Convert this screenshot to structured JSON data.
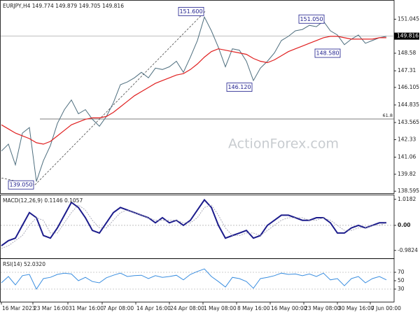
{
  "chart_data": [
    {
      "type": "line",
      "title": "EURJPY,H4 149.774 149.879 149.705 149.816",
      "watermark": "ActionForex.com",
      "xlim": [
        0,
        56
      ],
      "ylim": [
        138.45,
        152.33
      ],
      "yticks": [
        151.045,
        148.58,
        147.31,
        146.105,
        144.835,
        143.565,
        142.33,
        141.06,
        139.82,
        138.595
      ],
      "current_price": {
        "value": 149.816,
        "label": "149.816"
      },
      "series": [
        {
          "name": "EURJPY",
          "color": "#4e6e7e",
          "values": [
            141.5,
            142.0,
            140.5,
            142.8,
            143.2,
            139.3,
            140.8,
            141.9,
            143.5,
            144.5,
            145.2,
            144.2,
            144.5,
            143.8,
            143.3,
            144.0,
            145.0,
            146.3,
            146.5,
            146.8,
            147.2,
            146.8,
            147.5,
            147.4,
            147.6,
            148.0,
            147.2,
            148.3,
            149.5,
            151.2,
            150.2,
            149.0,
            147.6,
            148.9,
            148.8,
            148.0,
            146.6,
            147.5,
            148.0,
            148.6,
            149.5,
            149.8,
            150.2,
            150.3,
            150.6,
            150.5,
            150.9,
            150.2,
            149.9,
            149.2,
            149.6,
            149.9,
            149.3,
            149.5,
            149.7,
            149.8
          ]
        },
        {
          "name": "MA",
          "color": "#e02020",
          "values": [
            143.4,
            143.1,
            142.8,
            142.6,
            142.4,
            142.1,
            142.0,
            142.2,
            142.6,
            143.0,
            143.4,
            143.6,
            143.8,
            143.9,
            143.9,
            144.0,
            144.3,
            144.7,
            145.1,
            145.5,
            145.8,
            146.1,
            146.4,
            146.6,
            146.8,
            147.0,
            147.1,
            147.4,
            147.8,
            148.3,
            148.7,
            148.9,
            148.8,
            148.7,
            148.6,
            148.5,
            148.2,
            148.0,
            147.9,
            148.1,
            148.4,
            148.7,
            148.9,
            149.1,
            149.3,
            149.5,
            149.7,
            149.8,
            149.8,
            149.7,
            149.6,
            149.6,
            149.6,
            149.6,
            149.7,
            149.7
          ]
        }
      ],
      "annotations": [
        {
          "label": "151.600",
          "value": 151.6,
          "x": 29.1
        },
        {
          "label": "151.050",
          "value": 151.05,
          "x": 46.3
        },
        {
          "label": "148.580",
          "value": 148.58,
          "x": 48.6
        },
        {
          "label": "146.120",
          "value": 146.12,
          "x": 36
        },
        {
          "label": "139.050",
          "value": 139.05,
          "x": 4.8
        }
      ],
      "level": {
        "label": "61.8",
        "value": 143.82,
        "x": 5.5
      },
      "trendlines": [
        {
          "x": [
            4.8,
            29.1
          ],
          "values": [
            139.05,
            151.6
          ]
        },
        {
          "x": [
            0,
            4.8
          ],
          "values": [
            139.55,
            139.05
          ]
        }
      ]
    },
    {
      "type": "line",
      "title": "MACD(12,26,9) 0.1146 0.1057",
      "xlim": [
        0,
        56
      ],
      "ylim": [
        -1.29,
        1.15
      ],
      "yticks": [
        1.0182,
        {
          "value": 0,
          "label": "0.00"
        },
        -0.9824
      ],
      "reference": [
        0
      ],
      "series": [
        {
          "name": "MACD",
          "color": "#1c1c8c",
          "values": [
            -0.8,
            -0.6,
            -0.5,
            0.0,
            0.5,
            0.3,
            -0.4,
            -0.5,
            -0.1,
            0.4,
            0.9,
            0.7,
            0.3,
            -0.2,
            -0.3,
            0.1,
            0.5,
            0.7,
            0.6,
            0.5,
            0.4,
            0.3,
            0.1,
            0.3,
            0.1,
            0.2,
            0.0,
            0.2,
            0.6,
            1.0,
            0.7,
            0.0,
            -0.5,
            -0.4,
            -0.3,
            -0.2,
            -0.5,
            -0.4,
            0.0,
            0.2,
            0.4,
            0.4,
            0.3,
            0.2,
            0.2,
            0.3,
            0.3,
            0.1,
            -0.3,
            -0.3,
            -0.1,
            0.0,
            -0.1,
            0.0,
            0.1,
            0.1
          ]
        },
        {
          "name": "Signal",
          "color": "#9a9aaa",
          "values": [
            -0.9,
            -0.8,
            -0.6,
            -0.4,
            0.0,
            0.3,
            0.2,
            -0.3,
            -0.3,
            0.1,
            0.5,
            0.8,
            0.6,
            0.2,
            -0.1,
            -0.1,
            0.2,
            0.5,
            0.6,
            0.5,
            0.4,
            0.3,
            0.2,
            0.2,
            0.2,
            0.2,
            0.1,
            0.1,
            0.3,
            0.7,
            0.8,
            0.4,
            -0.1,
            -0.4,
            -0.4,
            -0.3,
            -0.3,
            -0.4,
            -0.2,
            0.0,
            0.2,
            0.3,
            0.3,
            0.3,
            0.2,
            0.2,
            0.3,
            0.2,
            0.0,
            -0.2,
            -0.2,
            -0.1,
            -0.1,
            0.0,
            0.0,
            0.1
          ]
        }
      ]
    },
    {
      "type": "line",
      "title": "RSI(14) 52.0320",
      "xlim": [
        0,
        56
      ],
      "ylim": [
        0,
        100
      ],
      "yticks": [
        70,
        50,
        30
      ],
      "reference": [
        70,
        30
      ],
      "xticks": [
        {
          "value": 0,
          "label": "16 Mar 2023"
        },
        {
          "value": 4.5,
          "label": "23 Mar 16:00"
        },
        {
          "value": 9.5,
          "label": "31 Mar 16:00"
        },
        {
          "value": 14.4,
          "label": "7 Apr 08:00"
        },
        {
          "value": 19.2,
          "label": "14 Apr 16:00"
        },
        {
          "value": 24,
          "label": "24 Apr 08:00"
        },
        {
          "value": 28.8,
          "label": "1 May 08:00"
        },
        {
          "value": 33.6,
          "label": "8 May 16:00"
        },
        {
          "value": 38.4,
          "label": "16 May 00:00"
        },
        {
          "value": 43.2,
          "label": "23 May 08:00"
        },
        {
          "value": 48,
          "label": "30 May 16:00"
        },
        {
          "value": 52.7,
          "label": "7 Jun 00:00"
        }
      ],
      "series": [
        {
          "name": "RSI",
          "color": "#3a8ee0",
          "values": [
            45,
            60,
            40,
            62,
            65,
            30,
            55,
            58,
            65,
            68,
            66,
            50,
            58,
            48,
            45,
            57,
            63,
            68,
            60,
            62,
            63,
            55,
            62,
            58,
            60,
            63,
            52,
            65,
            72,
            78,
            60,
            48,
            35,
            58,
            55,
            48,
            32,
            55,
            58,
            62,
            68,
            65,
            66,
            62,
            66,
            60,
            68,
            52,
            55,
            38,
            55,
            60,
            45,
            55,
            60,
            52
          ]
        }
      ]
    }
  ]
}
